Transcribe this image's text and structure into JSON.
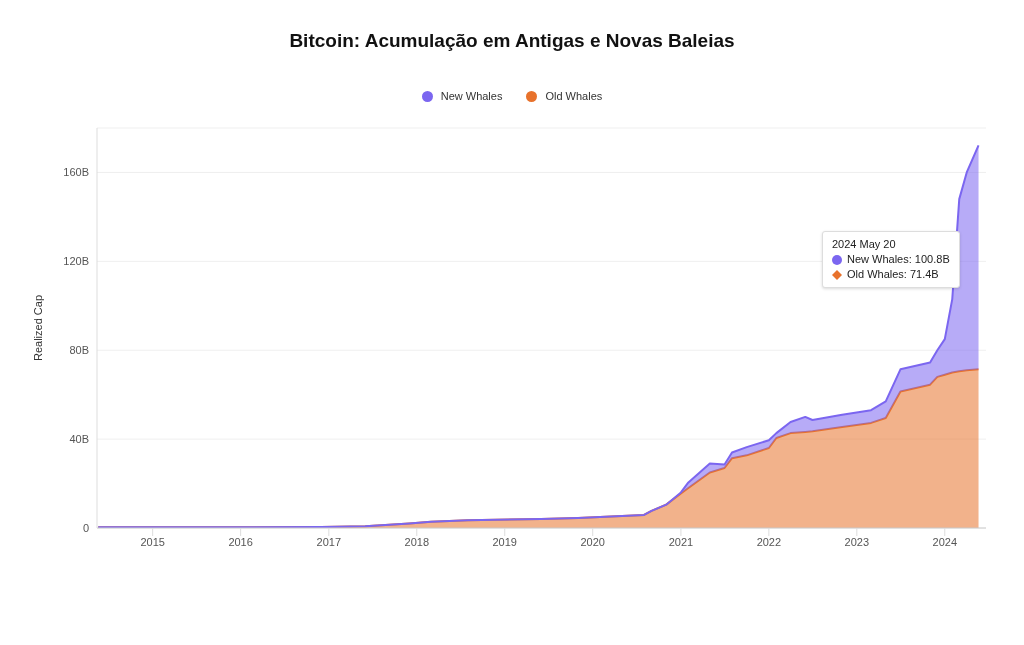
{
  "chart_data": {
    "type": "area",
    "title": "Bitcoin: Acumulação em Antigas e Novas Baleias",
    "ylabel": "Realized Cap",
    "x": [
      "2014-05-20",
      "2016-12",
      "2017-06",
      "2017-12",
      "2018-03",
      "2018-08",
      "2019-06",
      "2019-11",
      "2020-08",
      "2020-09",
      "2020-11",
      "2021-01",
      "2021-02",
      "2021-05",
      "2021-07",
      "2021-08",
      "2021-10",
      "2022-01",
      "2022-02",
      "2022-04",
      "2022-06",
      "2022-07",
      "2022-11",
      "2023-03",
      "2023-05",
      "2023-07",
      "2023-11",
      "2023-12",
      "2024-01",
      "2024-02",
      "2024-03",
      "2024-04",
      "2024-05-20"
    ],
    "series": [
      {
        "name": "Old Whales",
        "color": "#e8722c",
        "values": [
          0.3,
          0.4,
          0.8,
          2.0,
          2.8,
          3.5,
          4.0,
          4.5,
          5.9,
          7.7,
          10.5,
          15.5,
          18,
          25,
          27,
          31.4,
          32.7,
          36,
          40.5,
          42.7,
          43.2,
          43.5,
          45.5,
          47.3,
          49.5,
          61.4,
          64.5,
          68,
          69,
          70,
          70.5,
          71,
          71.4
        ]
      },
      {
        "name": "New Whales",
        "color": "#7b66f0",
        "values": [
          0,
          0,
          0,
          0,
          0,
          0,
          0,
          0,
          0,
          0,
          0,
          0.5,
          2.5,
          4,
          1.6,
          2.6,
          3.7,
          3.5,
          2.2,
          5,
          6.8,
          5.1,
          5.5,
          5.7,
          7.5,
          10,
          10,
          12,
          16,
          33,
          77.5,
          89,
          100.8
        ]
      }
    ],
    "stacked": true,
    "xlim": [
      "2014-05-15",
      "2024-06-20"
    ],
    "xticks": [
      "2015",
      "2016",
      "2017",
      "2018",
      "2019",
      "2020",
      "2021",
      "2022",
      "2023",
      "2024"
    ],
    "ylim": [
      0,
      180
    ],
    "yticks": [
      0,
      {
        "value": 40,
        "label": "40B"
      },
      {
        "value": 80,
        "label": "80B"
      },
      {
        "value": 120,
        "label": "120B"
      },
      {
        "value": 160,
        "label": "160B"
      }
    ],
    "grid": "y",
    "legend": "top",
    "annotations": [
      "2024 May 20",
      "New Whales: 100.8B",
      "Old Whales: 71.4B"
    ]
  }
}
